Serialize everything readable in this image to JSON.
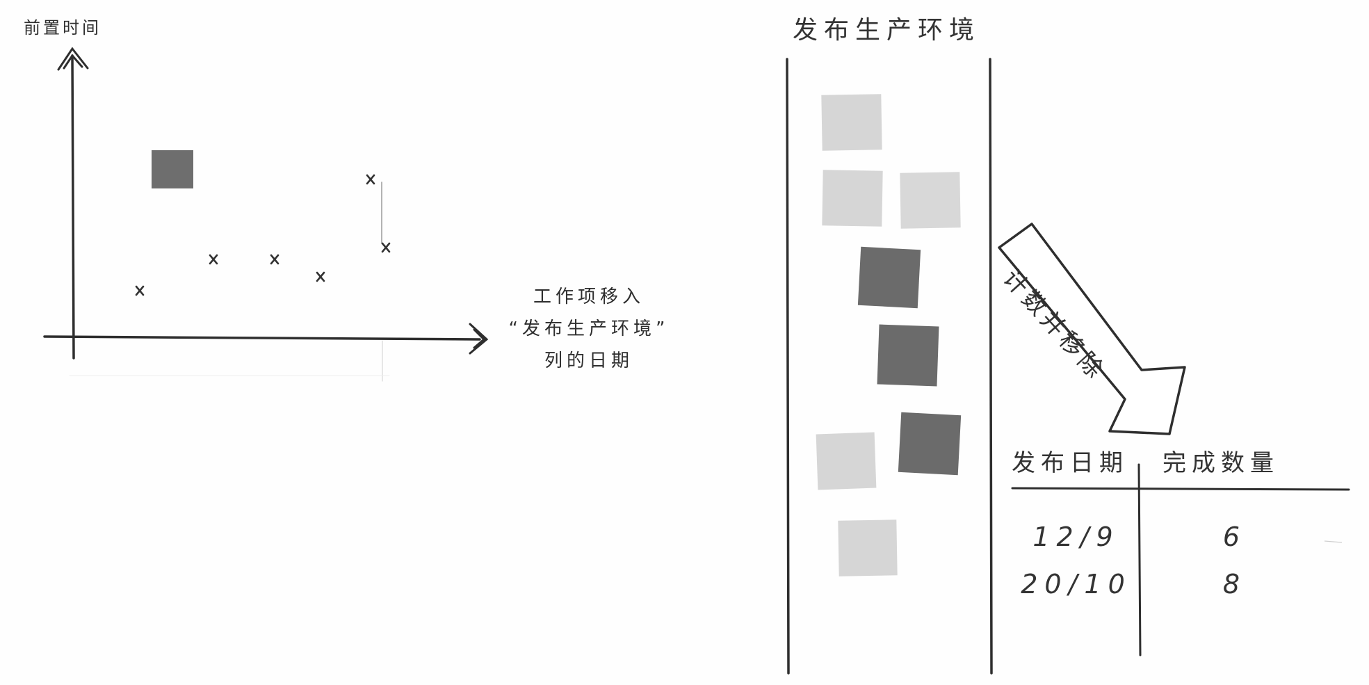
{
  "scatter_plot": {
    "y_axis_label": "前置时间",
    "x_axis_label_lines": [
      "工作项移入",
      "“发布生产环境”",
      "列的日期"
    ],
    "point_marker": "x"
  },
  "kanban_column": {
    "title": "发布生产环境"
  },
  "arrow": {
    "label": "计数并移除"
  },
  "completion_table": {
    "headers": [
      "发布日期",
      "完成数量"
    ],
    "rows": [
      {
        "date": "12/9",
        "count": "6"
      },
      {
        "date": "20/10",
        "count": "8"
      }
    ]
  },
  "colors": {
    "light_card": "#d7d7d7",
    "dark_card": "#6b6b6b",
    "ink": "#2e2e2e"
  }
}
